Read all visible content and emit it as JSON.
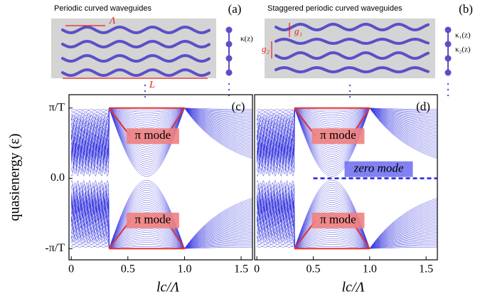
{
  "schematics": [
    {
      "title": "Periodic curved waveguides",
      "label": "(a)",
      "period": "Λ",
      "length": "L",
      "couplings": [
        "κ(z)"
      ]
    },
    {
      "title": "Staggered periodic curved waveguides",
      "label": "(b)",
      "gaps": [
        "g₁",
        "g₂"
      ],
      "couplings": [
        "κ₁(z)",
        "κ₂(z)"
      ]
    }
  ],
  "chart_data": [
    {
      "type": "spectrum",
      "label": "(c)",
      "y_label": "quasienergy (ε)",
      "x_label": "lc/Λ",
      "xlim": [
        -0.02,
        1.6
      ],
      "xticks": [
        0,
        {
          "value": 0.5,
          "label": "0.5"
        },
        {
          "value": 1,
          "label": "1.0"
        },
        {
          "value": 1.5,
          "label": "1.5"
        }
      ],
      "ylim": [
        -1.16,
        1.19
      ],
      "yticks": [
        {
          "value": 1,
          "label": "π/T"
        },
        {
          "value": 0,
          "label": "0.0"
        },
        {
          "value": -1,
          "label": "-π/T"
        }
      ],
      "annotations": [
        "π mode",
        "π mode"
      ],
      "color": "#3a3ae0"
    },
    {
      "type": "spectrum",
      "label": "(d)",
      "x_label": "lc/Λ",
      "xlim": [
        -0.02,
        1.6
      ],
      "xticks": [
        0,
        {
          "value": 0.5,
          "label": "0.5"
        },
        {
          "value": 1,
          "label": "1.0"
        },
        {
          "value": 1.5,
          "label": "1.5"
        }
      ],
      "ylim": [
        -1.16,
        1.19
      ],
      "annotations": [
        "π mode",
        "π mode",
        "zero mode"
      ],
      "color": "#3a3ae0"
    }
  ]
}
